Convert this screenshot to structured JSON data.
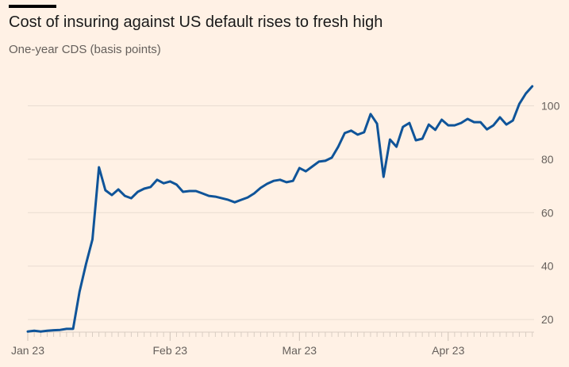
{
  "header": {
    "title": "Cost of insuring against US default rises to fresh high",
    "subtitle": "One-year CDS (basis points)"
  },
  "colors": {
    "background": "#fff1e5",
    "series": "#0f5499",
    "text": "#66605c"
  },
  "chart_data": {
    "type": "line",
    "title": "Cost of insuring against US default rises to fresh high",
    "subtitle": "One-year CDS (basis points)",
    "xlabel": "",
    "ylabel": "",
    "ylim": [
      15,
      110
    ],
    "yticks": [
      20,
      40,
      60,
      80,
      100
    ],
    "ytick_labels": [
      "20",
      "40",
      "60",
      "80",
      "100"
    ],
    "y_axis_side": "right",
    "grid": true,
    "xtick_labels": [
      "Jan 23",
      "Feb 23",
      "Mar 23",
      "Apr 23"
    ],
    "xtick_index": [
      0,
      22,
      42,
      65
    ],
    "legend": "none",
    "series": [
      {
        "name": "One-year CDS",
        "values": [
          15.5,
          15.8,
          15.5,
          15.8,
          16.0,
          16.1,
          16.5,
          16.5,
          30.4,
          40.8,
          50.0,
          77.0,
          68.4,
          66.6,
          68.7,
          66.3,
          65.4,
          67.8,
          69.0,
          69.6,
          72.3,
          71.0,
          71.7,
          70.5,
          67.8,
          68.1,
          68.1,
          67.2,
          66.3,
          66.0,
          65.4,
          64.8,
          63.9,
          64.8,
          65.7,
          67.2,
          69.3,
          70.8,
          71.9,
          72.3,
          71.4,
          71.9,
          76.7,
          75.5,
          77.3,
          79.1,
          79.4,
          80.6,
          84.7,
          89.8,
          90.7,
          89.2,
          90.1,
          96.9,
          93.3,
          73.4,
          87.4,
          84.7,
          92.1,
          93.6,
          87.1,
          87.7,
          93.0,
          91.0,
          94.8,
          92.7,
          92.7,
          93.6,
          95.1,
          93.9,
          93.9,
          91.2,
          92.7,
          95.7,
          93.0,
          94.5,
          100.7,
          104.6,
          107.3
        ]
      }
    ]
  }
}
